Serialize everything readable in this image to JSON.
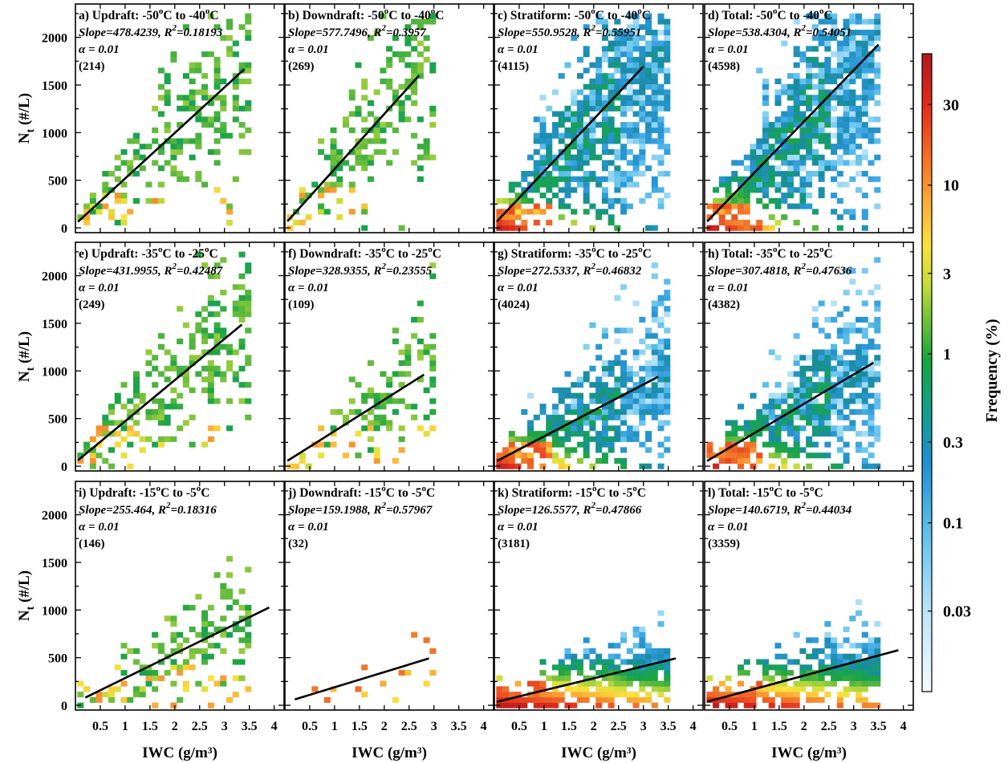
{
  "chart_data": {
    "type": "heatmap",
    "xlabel": "IWC (g/m³)",
    "ylabel": "N",
    "ylabel_sub": "t",
    "ylabel_unit": " (#/L)",
    "x_ticks": [
      "0.5",
      "1",
      "1.5",
      "2",
      "2.5",
      "3",
      "3.5",
      "4"
    ],
    "y_ticks": [
      "0",
      "500",
      "1000",
      "1500",
      "2000"
    ],
    "xlim": [
      0,
      4.2
    ],
    "ylim": [
      -50,
      2350
    ],
    "colorbar": {
      "label": "Frequency (%)",
      "ticks": [
        "30",
        "10",
        "3",
        "1",
        "0.3",
        "0.1",
        "0.03"
      ],
      "tick_values": [
        30,
        10,
        3,
        1,
        0.3,
        0.1,
        0.03
      ],
      "range": [
        0.01,
        60
      ]
    },
    "panels": [
      {
        "label": "a) Updraft: -50",
        "lower": "-40",
        "region": "updraft",
        "slope_text": "Slope=478.4239, R",
        "r2": "=0.18193",
        "alpha": "α = 0.01",
        "count": "(214)",
        "slope": 478.4239,
        "fit_x": [
          0.05,
          3.4
        ]
      },
      {
        "label": "b) Downdraft: -50",
        "lower": "-40",
        "region": "downdraft",
        "slope_text": "Slope=577.7496, R",
        "r2": "=0.3957",
        "alpha": "α = 0.01",
        "count": "(269)",
        "slope": 577.7496,
        "fit_x": [
          0.05,
          2.7
        ]
      },
      {
        "label": "c) Stratiform: -50",
        "lower": "-40",
        "region": "stratiform",
        "slope_text": "Slope=550.9528, R",
        "r2": "=0.55951",
        "alpha": "α = 0.01",
        "count": "(4115)",
        "slope": 550.9528,
        "fit_x": [
          0.05,
          3.0
        ]
      },
      {
        "label": "d) Total: -50",
        "lower": "-40",
        "region": "total",
        "slope_text": "Slope=538.4304, R",
        "r2": "=0.54051",
        "alpha": "α = 0.01",
        "count": "(4598)",
        "slope": 538.4304,
        "fit_x": [
          0.05,
          3.5
        ]
      },
      {
        "label": "e) Updraft: -35",
        "lower": "-25",
        "region": "updraft",
        "slope_text": "Slope=431.9955, R",
        "r2": "=0.42487",
        "alpha": "α = 0.01",
        "count": "(249)",
        "slope": 431.9955,
        "fit_x": [
          0.05,
          3.35
        ]
      },
      {
        "label": "f) Downdraft: -35",
        "lower": "-25",
        "region": "downdraft",
        "slope_text": "Slope=328.9355, R",
        "r2": "=0.23555",
        "alpha": "α = 0.01",
        "count": "(109)",
        "slope": 328.9355,
        "fit_x": [
          0.05,
          2.8
        ]
      },
      {
        "label": "g) Stratiform: -35",
        "lower": "-25",
        "region": "stratiform",
        "slope_text": "Slope=272.5337, R",
        "r2": "=0.46832",
        "alpha": "α = 0.01",
        "count": "(4024)",
        "slope": 272.5337,
        "fit_x": [
          0.05,
          3.3
        ]
      },
      {
        "label": "h) Total: -35",
        "lower": "-25",
        "region": "total",
        "slope_text": "Slope=307.4818, R",
        "r2": "=0.47636",
        "alpha": "α = 0.01",
        "count": "(4382)",
        "slope": 307.4818,
        "fit_x": [
          0.05,
          3.4
        ]
      },
      {
        "label": "i) Updraft: -15",
        "lower": "-5",
        "region": "updraft",
        "slope_text": "Slope=255.464, R",
        "r2": "=0.18316",
        "alpha": "α = 0.01",
        "count": "(146)",
        "slope": 255.464,
        "fit_x": [
          0.2,
          3.9
        ]
      },
      {
        "label": "j) Downdraft: -15",
        "lower": "-5",
        "region": "downdraft",
        "slope_text": "Slope=159.1988, R",
        "r2": "=0.57967",
        "alpha": "α = 0.01",
        "count": "(32)",
        "slope": 159.1988,
        "fit_x": [
          0.2,
          2.9
        ]
      },
      {
        "label": "k) Stratiform: -15",
        "lower": "-5",
        "region": "stratiform",
        "slope_text": "Slope=126.5577, R",
        "r2": "=0.47866",
        "alpha": "α = 0.01",
        "count": "(3181)",
        "slope": 126.5577,
        "fit_x": [
          0.05,
          3.65
        ]
      },
      {
        "label": "l) Total: -15",
        "lower": "-5",
        "region": "total",
        "slope_text": "Slope=140.6719, R",
        "r2": "=0.44034",
        "alpha": "α = 0.01",
        "count": "(3359)",
        "slope": 140.6719,
        "fit_x": [
          0.05,
          3.9
        ]
      }
    ]
  }
}
